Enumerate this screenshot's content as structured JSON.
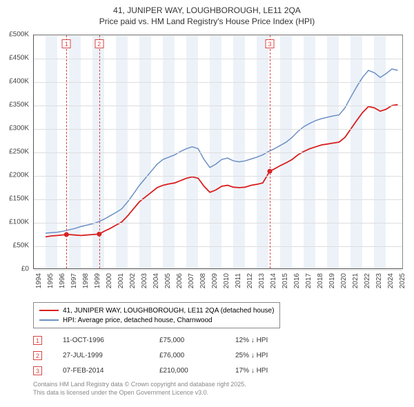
{
  "title": {
    "line1": "41, JUNIPER WAY, LOUGHBOROUGH, LE11 2QA",
    "line2": "Price paid vs. HM Land Registry's House Price Index (HPI)"
  },
  "chart": {
    "type": "line",
    "background_color": "#ffffff",
    "grid_color": "#dddddd",
    "band_color": "#edf2f9",
    "axis_color": "#555555",
    "y": {
      "min": 0,
      "max": 500000,
      "step": 50000,
      "ticks": [
        0,
        50000,
        100000,
        150000,
        200000,
        250000,
        300000,
        350000,
        400000,
        450000,
        500000
      ],
      "tick_labels": [
        "£0",
        "£50K",
        "£100K",
        "£150K",
        "£200K",
        "£250K",
        "£300K",
        "£350K",
        "£400K",
        "£450K",
        "£500K"
      ]
    },
    "x": {
      "min": 1994,
      "max": 2025.5,
      "ticks": [
        1994,
        1995,
        1996,
        1997,
        1998,
        1999,
        2000,
        2001,
        2002,
        2003,
        2004,
        2005,
        2006,
        2007,
        2008,
        2009,
        2010,
        2011,
        2012,
        2013,
        2014,
        2015,
        2016,
        2017,
        2018,
        2019,
        2020,
        2021,
        2022,
        2023,
        2024,
        2025
      ],
      "tick_labels": [
        "1994",
        "1995",
        "1996",
        "1997",
        "1998",
        "1999",
        "2000",
        "2001",
        "2002",
        "2003",
        "2004",
        "2005",
        "2006",
        "2007",
        "2008",
        "2009",
        "2010",
        "2011",
        "2012",
        "2013",
        "2014",
        "2015",
        "2016",
        "2017",
        "2018",
        "2019",
        "2020",
        "2021",
        "2022",
        "2023",
        "2024",
        "2025"
      ]
    },
    "series": [
      {
        "name": "property",
        "label": "41, JUNIPER WAY, LOUGHBOROUGH, LE11 2QA (detached house)",
        "color": "#d91e1e",
        "line_width": 1.8,
        "points": [
          [
            1995.0,
            70000
          ],
          [
            1995.5,
            72000
          ],
          [
            1996.0,
            73000
          ],
          [
            1996.78,
            75000
          ],
          [
            1997.0,
            75000
          ],
          [
            1997.5,
            74000
          ],
          [
            1998.0,
            73000
          ],
          [
            1998.5,
            74000
          ],
          [
            1999.0,
            75000
          ],
          [
            1999.57,
            76000
          ],
          [
            2000.0,
            82000
          ],
          [
            2000.5,
            88000
          ],
          [
            2001.0,
            95000
          ],
          [
            2001.5,
            102000
          ],
          [
            2002.0,
            115000
          ],
          [
            2002.5,
            130000
          ],
          [
            2003.0,
            145000
          ],
          [
            2003.5,
            155000
          ],
          [
            2004.0,
            165000
          ],
          [
            2004.5,
            175000
          ],
          [
            2005.0,
            180000
          ],
          [
            2005.5,
            183000
          ],
          [
            2006.0,
            185000
          ],
          [
            2006.5,
            190000
          ],
          [
            2007.0,
            195000
          ],
          [
            2007.5,
            198000
          ],
          [
            2008.0,
            195000
          ],
          [
            2008.5,
            178000
          ],
          [
            2009.0,
            165000
          ],
          [
            2009.5,
            170000
          ],
          [
            2010.0,
            178000
          ],
          [
            2010.5,
            180000
          ],
          [
            2011.0,
            176000
          ],
          [
            2011.5,
            175000
          ],
          [
            2012.0,
            176000
          ],
          [
            2012.5,
            180000
          ],
          [
            2013.0,
            182000
          ],
          [
            2013.5,
            185000
          ],
          [
            2014.1,
            210000
          ],
          [
            2014.5,
            215000
          ],
          [
            2015.0,
            222000
          ],
          [
            2015.5,
            228000
          ],
          [
            2016.0,
            235000
          ],
          [
            2016.5,
            245000
          ],
          [
            2017.0,
            252000
          ],
          [
            2017.5,
            258000
          ],
          [
            2018.0,
            262000
          ],
          [
            2018.5,
            266000
          ],
          [
            2019.0,
            268000
          ],
          [
            2019.5,
            270000
          ],
          [
            2020.0,
            272000
          ],
          [
            2020.5,
            282000
          ],
          [
            2021.0,
            300000
          ],
          [
            2021.5,
            318000
          ],
          [
            2022.0,
            335000
          ],
          [
            2022.5,
            348000
          ],
          [
            2023.0,
            345000
          ],
          [
            2023.5,
            338000
          ],
          [
            2024.0,
            342000
          ],
          [
            2024.5,
            350000
          ],
          [
            2025.0,
            352000
          ]
        ]
      },
      {
        "name": "hpi",
        "label": "HPI: Average price, detached house, Charnwood",
        "color": "#6a8fc4",
        "line_width": 1.5,
        "points": [
          [
            1995.0,
            78000
          ],
          [
            1995.5,
            79000
          ],
          [
            1996.0,
            80000
          ],
          [
            1996.5,
            82000
          ],
          [
            1997.0,
            85000
          ],
          [
            1997.5,
            88000
          ],
          [
            1998.0,
            92000
          ],
          [
            1998.5,
            95000
          ],
          [
            1999.0,
            98000
          ],
          [
            1999.5,
            102000
          ],
          [
            2000.0,
            108000
          ],
          [
            2000.5,
            115000
          ],
          [
            2001.0,
            122000
          ],
          [
            2001.5,
            130000
          ],
          [
            2002.0,
            145000
          ],
          [
            2002.5,
            162000
          ],
          [
            2003.0,
            180000
          ],
          [
            2003.5,
            195000
          ],
          [
            2004.0,
            210000
          ],
          [
            2004.5,
            225000
          ],
          [
            2005.0,
            235000
          ],
          [
            2005.5,
            240000
          ],
          [
            2006.0,
            245000
          ],
          [
            2006.5,
            252000
          ],
          [
            2007.0,
            258000
          ],
          [
            2007.5,
            262000
          ],
          [
            2008.0,
            258000
          ],
          [
            2008.5,
            235000
          ],
          [
            2009.0,
            218000
          ],
          [
            2009.5,
            225000
          ],
          [
            2010.0,
            235000
          ],
          [
            2010.5,
            238000
          ],
          [
            2011.0,
            232000
          ],
          [
            2011.5,
            230000
          ],
          [
            2012.0,
            232000
          ],
          [
            2012.5,
            236000
          ],
          [
            2013.0,
            240000
          ],
          [
            2013.5,
            245000
          ],
          [
            2014.0,
            252000
          ],
          [
            2014.5,
            258000
          ],
          [
            2015.0,
            265000
          ],
          [
            2015.5,
            272000
          ],
          [
            2016.0,
            282000
          ],
          [
            2016.5,
            295000
          ],
          [
            2017.0,
            305000
          ],
          [
            2017.5,
            312000
          ],
          [
            2018.0,
            318000
          ],
          [
            2018.5,
            322000
          ],
          [
            2019.0,
            325000
          ],
          [
            2019.5,
            328000
          ],
          [
            2020.0,
            330000
          ],
          [
            2020.5,
            345000
          ],
          [
            2021.0,
            368000
          ],
          [
            2021.5,
            390000
          ],
          [
            2022.0,
            410000
          ],
          [
            2022.5,
            425000
          ],
          [
            2023.0,
            420000
          ],
          [
            2023.5,
            410000
          ],
          [
            2024.0,
            418000
          ],
          [
            2024.5,
            428000
          ],
          [
            2025.0,
            425000
          ]
        ]
      }
    ],
    "markers": [
      {
        "n": "1",
        "x": 1996.78,
        "y": 75000
      },
      {
        "n": "2",
        "x": 1999.57,
        "y": 76000
      },
      {
        "n": "3",
        "x": 2014.1,
        "y": 210000
      }
    ]
  },
  "legend": {
    "items": [
      {
        "color": "#d91e1e",
        "label": "41, JUNIPER WAY, LOUGHBOROUGH, LE11 2QA (detached house)"
      },
      {
        "color": "#6a8fc4",
        "label": "HPI: Average price, detached house, Charnwood"
      }
    ]
  },
  "sales": [
    {
      "n": "1",
      "date": "11-OCT-1996",
      "price": "£75,000",
      "delta": "12% ↓ HPI"
    },
    {
      "n": "2",
      "date": "27-JUL-1999",
      "price": "£76,000",
      "delta": "25% ↓ HPI"
    },
    {
      "n": "3",
      "date": "07-FEB-2014",
      "price": "£210,000",
      "delta": "17% ↓ HPI"
    }
  ],
  "attribution": {
    "line1": "Contains HM Land Registry data © Crown copyright and database right 2025.",
    "line2": "This data is licensed under the Open Government Licence v3.0."
  }
}
